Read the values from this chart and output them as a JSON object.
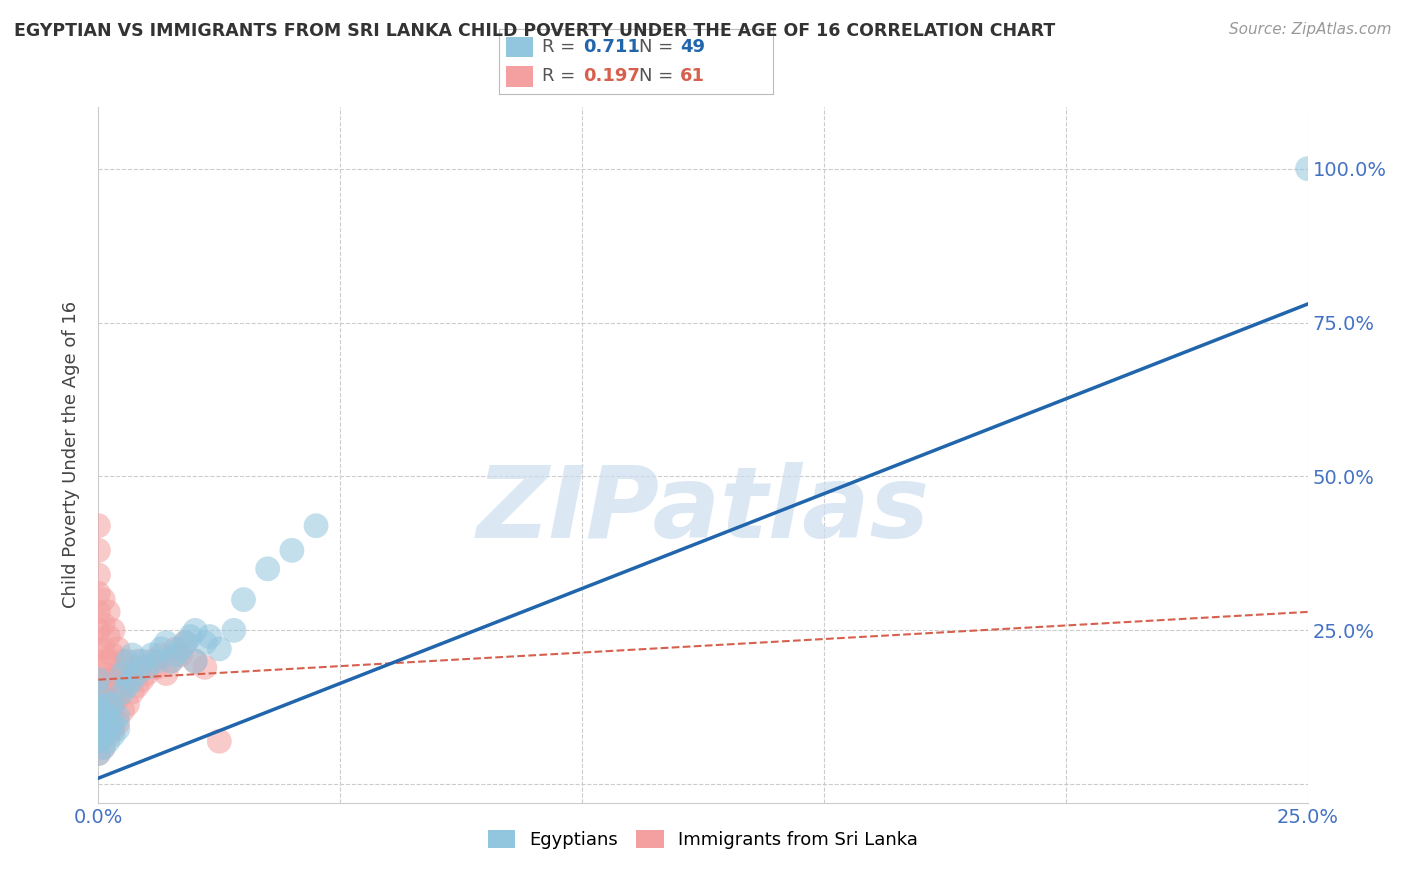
{
  "title": "EGYPTIAN VS IMMIGRANTS FROM SRI LANKA CHILD POVERTY UNDER THE AGE OF 16 CORRELATION CHART",
  "source": "Source: ZipAtlas.com",
  "ylabel": "Child Poverty Under the Age of 16",
  "xlim": [
    0.0,
    0.25
  ],
  "ylim": [
    -0.03,
    1.1
  ],
  "xticks": [
    0.0,
    0.05,
    0.1,
    0.15,
    0.2,
    0.25
  ],
  "xtick_labels": [
    "0.0%",
    "",
    "",
    "",
    "",
    "25.0%"
  ],
  "yticks": [
    0.0,
    0.25,
    0.5,
    0.75,
    1.0
  ],
  "ytick_labels_right": [
    "",
    "25.0%",
    "50.0%",
    "75.0%",
    "100.0%"
  ],
  "blue_R": 0.711,
  "blue_N": 49,
  "pink_R": 0.197,
  "pink_N": 61,
  "blue_color": "#92c5de",
  "pink_color": "#f4a0a0",
  "blue_line_color": "#2166ac",
  "pink_line_color": "#d6604d",
  "watermark_color": "#ccdff0",
  "background_color": "#ffffff",
  "grid_color": "#cccccc",
  "blue_scatter": [
    [
      0.0,
      0.05
    ],
    [
      0.0,
      0.07
    ],
    [
      0.0,
      0.09
    ],
    [
      0.0,
      0.11
    ],
    [
      0.0,
      0.13
    ],
    [
      0.0,
      0.15
    ],
    [
      0.0,
      0.17
    ],
    [
      0.001,
      0.06
    ],
    [
      0.001,
      0.08
    ],
    [
      0.001,
      0.1
    ],
    [
      0.001,
      0.12
    ],
    [
      0.002,
      0.07
    ],
    [
      0.002,
      0.09
    ],
    [
      0.002,
      0.11
    ],
    [
      0.002,
      0.13
    ],
    [
      0.003,
      0.08
    ],
    [
      0.003,
      0.1
    ],
    [
      0.003,
      0.13
    ],
    [
      0.004,
      0.09
    ],
    [
      0.004,
      0.11
    ],
    [
      0.005,
      0.15
    ],
    [
      0.005,
      0.18
    ],
    [
      0.006,
      0.16
    ],
    [
      0.006,
      0.2
    ],
    [
      0.007,
      0.17
    ],
    [
      0.007,
      0.21
    ],
    [
      0.008,
      0.18
    ],
    [
      0.009,
      0.2
    ],
    [
      0.01,
      0.19
    ],
    [
      0.011,
      0.21
    ],
    [
      0.012,
      0.2
    ],
    [
      0.013,
      0.22
    ],
    [
      0.014,
      0.23
    ],
    [
      0.015,
      0.2
    ],
    [
      0.016,
      0.21
    ],
    [
      0.017,
      0.22
    ],
    [
      0.018,
      0.23
    ],
    [
      0.019,
      0.24
    ],
    [
      0.02,
      0.2
    ],
    [
      0.02,
      0.25
    ],
    [
      0.022,
      0.23
    ],
    [
      0.023,
      0.24
    ],
    [
      0.025,
      0.22
    ],
    [
      0.028,
      0.25
    ],
    [
      0.03,
      0.3
    ],
    [
      0.035,
      0.35
    ],
    [
      0.04,
      0.38
    ],
    [
      0.045,
      0.42
    ],
    [
      0.25,
      1.0
    ]
  ],
  "pink_scatter": [
    [
      0.0,
      0.05
    ],
    [
      0.0,
      0.07
    ],
    [
      0.0,
      0.09
    ],
    [
      0.0,
      0.11
    ],
    [
      0.0,
      0.13
    ],
    [
      0.0,
      0.15
    ],
    [
      0.0,
      0.17
    ],
    [
      0.0,
      0.2
    ],
    [
      0.0,
      0.22
    ],
    [
      0.0,
      0.25
    ],
    [
      0.0,
      0.28
    ],
    [
      0.0,
      0.31
    ],
    [
      0.0,
      0.34
    ],
    [
      0.0,
      0.38
    ],
    [
      0.0,
      0.42
    ],
    [
      0.001,
      0.06
    ],
    [
      0.001,
      0.09
    ],
    [
      0.001,
      0.12
    ],
    [
      0.001,
      0.15
    ],
    [
      0.001,
      0.18
    ],
    [
      0.001,
      0.22
    ],
    [
      0.001,
      0.26
    ],
    [
      0.001,
      0.3
    ],
    [
      0.002,
      0.08
    ],
    [
      0.002,
      0.11
    ],
    [
      0.002,
      0.14
    ],
    [
      0.002,
      0.17
    ],
    [
      0.002,
      0.2
    ],
    [
      0.002,
      0.24
    ],
    [
      0.002,
      0.28
    ],
    [
      0.003,
      0.09
    ],
    [
      0.003,
      0.13
    ],
    [
      0.003,
      0.17
    ],
    [
      0.003,
      0.21
    ],
    [
      0.003,
      0.25
    ],
    [
      0.004,
      0.1
    ],
    [
      0.004,
      0.14
    ],
    [
      0.004,
      0.18
    ],
    [
      0.004,
      0.22
    ],
    [
      0.005,
      0.12
    ],
    [
      0.005,
      0.16
    ],
    [
      0.005,
      0.2
    ],
    [
      0.006,
      0.13
    ],
    [
      0.006,
      0.17
    ],
    [
      0.007,
      0.15
    ],
    [
      0.007,
      0.19
    ],
    [
      0.008,
      0.16
    ],
    [
      0.008,
      0.2
    ],
    [
      0.009,
      0.17
    ],
    [
      0.01,
      0.18
    ],
    [
      0.011,
      0.2
    ],
    [
      0.012,
      0.19
    ],
    [
      0.013,
      0.21
    ],
    [
      0.014,
      0.18
    ],
    [
      0.015,
      0.2
    ],
    [
      0.016,
      0.22
    ],
    [
      0.017,
      0.21
    ],
    [
      0.018,
      0.23
    ],
    [
      0.02,
      0.2
    ],
    [
      0.022,
      0.19
    ],
    [
      0.025,
      0.07
    ]
  ],
  "blue_line_x": [
    0.0,
    0.25
  ],
  "blue_line_y": [
    0.01,
    0.78
  ],
  "pink_line_x": [
    0.0,
    0.25
  ],
  "pink_line_y": [
    0.17,
    0.28
  ]
}
